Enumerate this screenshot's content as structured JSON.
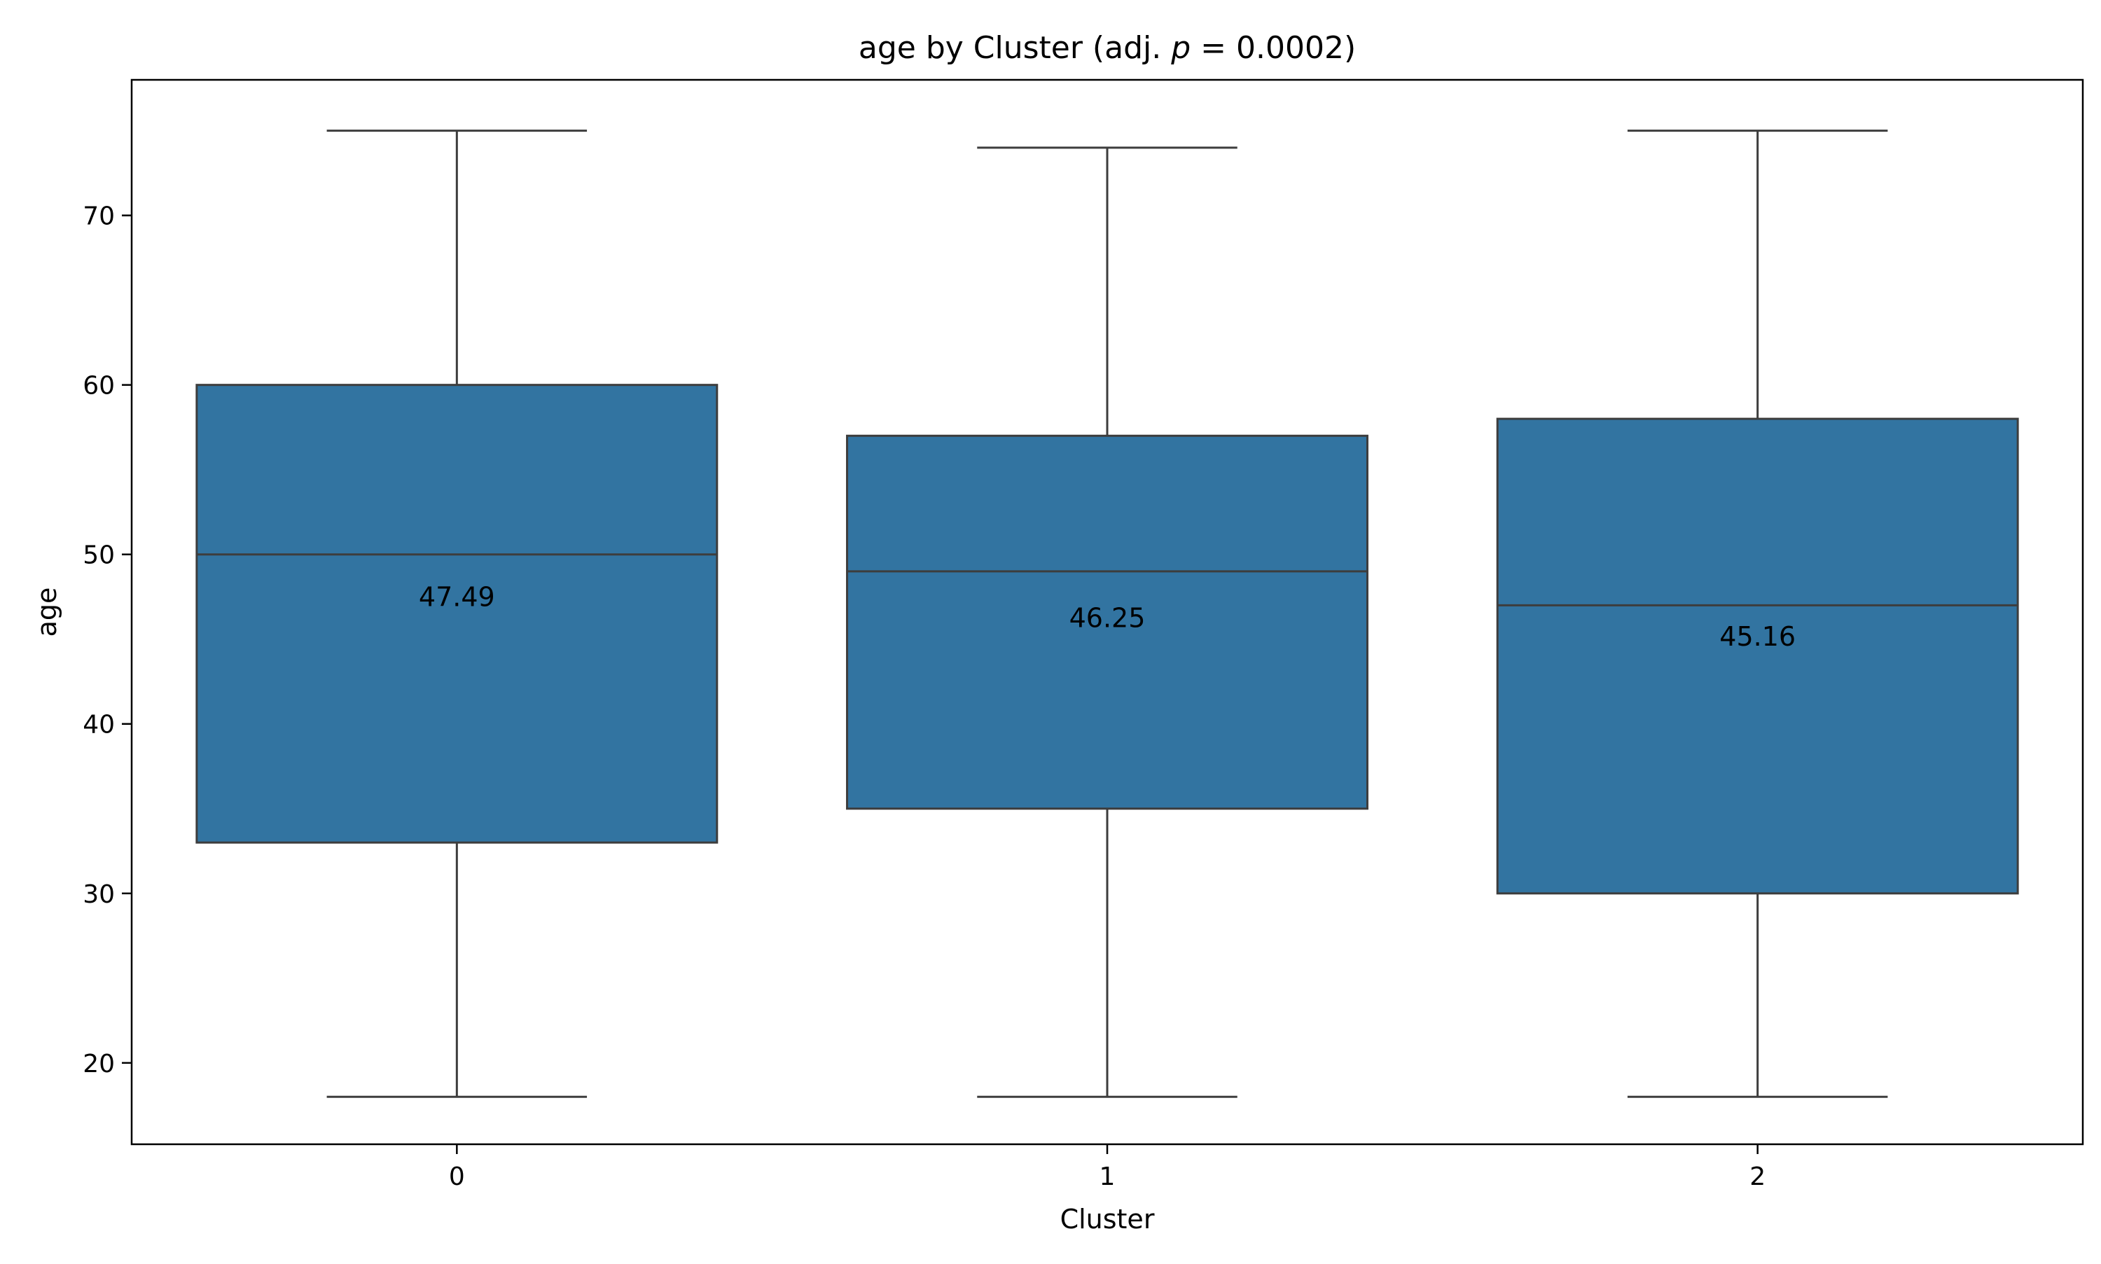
{
  "chart_data": {
    "type": "box",
    "title": "age by Cluster (adj. p = 0.0002)",
    "title_parts": {
      "prefix": "age by Cluster (adj. ",
      "italic": "p",
      "suffix": " = 0.0002)"
    },
    "xlabel": "Cluster",
    "ylabel": "age",
    "categories": [
      "0",
      "1",
      "2"
    ],
    "ylim": [
      15.2,
      78
    ],
    "yticks": [
      20,
      30,
      40,
      50,
      60,
      70
    ],
    "grid": false,
    "legend": "none",
    "box_color": "#3274a1",
    "line_color": "#3d3d3d",
    "boxes": [
      {
        "category": "0",
        "whisker_low": 18,
        "q1": 33,
        "median": 50,
        "q3": 60,
        "whisker_high": 75,
        "mean": 47.49,
        "mean_label": "47.49"
      },
      {
        "category": "1",
        "whisker_low": 18,
        "q1": 35,
        "median": 49,
        "q3": 57,
        "whisker_high": 74,
        "mean": 46.25,
        "mean_label": "46.25"
      },
      {
        "category": "2",
        "whisker_low": 18,
        "q1": 30,
        "median": 47,
        "q3": 58,
        "whisker_high": 75,
        "mean": 45.16,
        "mean_label": "45.16"
      }
    ]
  }
}
